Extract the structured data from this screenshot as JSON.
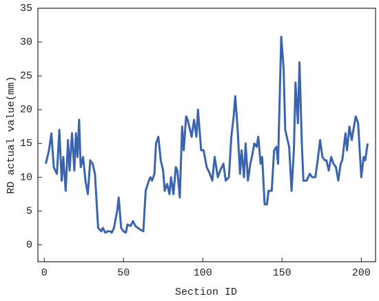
{
  "chart_data": {
    "type": "line",
    "xlabel": "Section ID",
    "ylabel": "RD actual value(mm)",
    "xlim": [
      -4,
      209
    ],
    "ylim": [
      -2.5,
      35
    ],
    "xticks": [
      0,
      50,
      100,
      150,
      200
    ],
    "yticks": [
      0,
      5,
      10,
      15,
      20,
      25,
      30,
      35
    ],
    "grid": false,
    "series": [
      {
        "name": "RD actual value",
        "color": "#3a64ad",
        "x": [
          1,
          3,
          4.5,
          6,
          7,
          8,
          9.5,
          11,
          12,
          13.5,
          15,
          16,
          17.5,
          19,
          20,
          21,
          22,
          23,
          24.5,
          26,
          27.5,
          29,
          30.5,
          32,
          34,
          36,
          37,
          38.5,
          40,
          41.5,
          42.5,
          44,
          46,
          47,
          48.5,
          50,
          51.5,
          52.5,
          54.5,
          56,
          57.5,
          59,
          61,
          62.5,
          64,
          66,
          67,
          68,
          69.5,
          70.5,
          72,
          73.5,
          75,
          76,
          77.5,
          79,
          80,
          81.5,
          83,
          84,
          85.5,
          87,
          88,
          89.5,
          90.5,
          92,
          93,
          94.5,
          96,
          97,
          99,
          100.5,
          102.5,
          104.5,
          106,
          107.5,
          109.5,
          111,
          113,
          114.5,
          116.5,
          118,
          119.5,
          120.5,
          122,
          123.5,
          124.5,
          126,
          127,
          128.5,
          130,
          131,
          132.5,
          134,
          135,
          136.5,
          137.5,
          139,
          140.5,
          141.5,
          143.5,
          145,
          146.5,
          147.5,
          148,
          149.5,
          151,
          152,
          153.5,
          154.5,
          156,
          157.5,
          158.5,
          160,
          161,
          162.5,
          163.5,
          165.5,
          167.5,
          169,
          171,
          172.5,
          174,
          175.5,
          177,
          178,
          179.5,
          181,
          182.5,
          184,
          185.5,
          187,
          188,
          190,
          191,
          192.5,
          194,
          195,
          196.5,
          198,
          199,
          200,
          201.5,
          202.5,
          204
        ],
        "values": [
          12,
          14,
          16.5,
          11.5,
          11,
          10.5,
          17,
          9.5,
          13,
          8,
          15.5,
          11,
          16.5,
          11,
          16.5,
          13,
          18.5,
          11.5,
          13,
          9.5,
          7.5,
          12.5,
          12,
          10.5,
          2.5,
          2,
          2.5,
          1.8,
          2,
          2,
          1.8,
          2.5,
          5,
          7,
          2.5,
          2,
          1.8,
          3,
          2.8,
          3.5,
          2.8,
          2.5,
          2.2,
          2,
          8,
          9.5,
          10,
          9.5,
          10.5,
          15,
          16,
          12.5,
          11,
          8,
          9,
          7.5,
          10,
          7.5,
          11.5,
          11,
          7,
          17.5,
          14,
          19,
          18.5,
          17,
          16,
          18.5,
          16,
          20,
          14,
          14,
          11.5,
          10.5,
          9.5,
          13,
          10,
          11,
          12,
          9.5,
          10,
          16,
          19,
          22,
          17,
          10.5,
          14,
          10,
          15,
          9.5,
          12,
          13,
          15,
          14.5,
          16,
          12,
          13,
          6,
          6,
          8,
          8,
          14,
          14.5,
          12,
          17,
          30.8,
          26,
          17,
          15.5,
          14.5,
          8,
          14,
          24,
          18,
          27,
          15,
          9.5,
          9.5,
          10.5,
          10,
          10,
          12.5,
          15.5,
          13,
          12.5,
          12.5,
          11,
          13,
          12,
          11.5,
          9.5,
          12,
          12.5,
          16.5,
          14,
          17.5,
          15.5,
          17,
          19,
          18,
          14,
          10,
          13,
          12.5,
          15
        ]
      }
    ]
  }
}
